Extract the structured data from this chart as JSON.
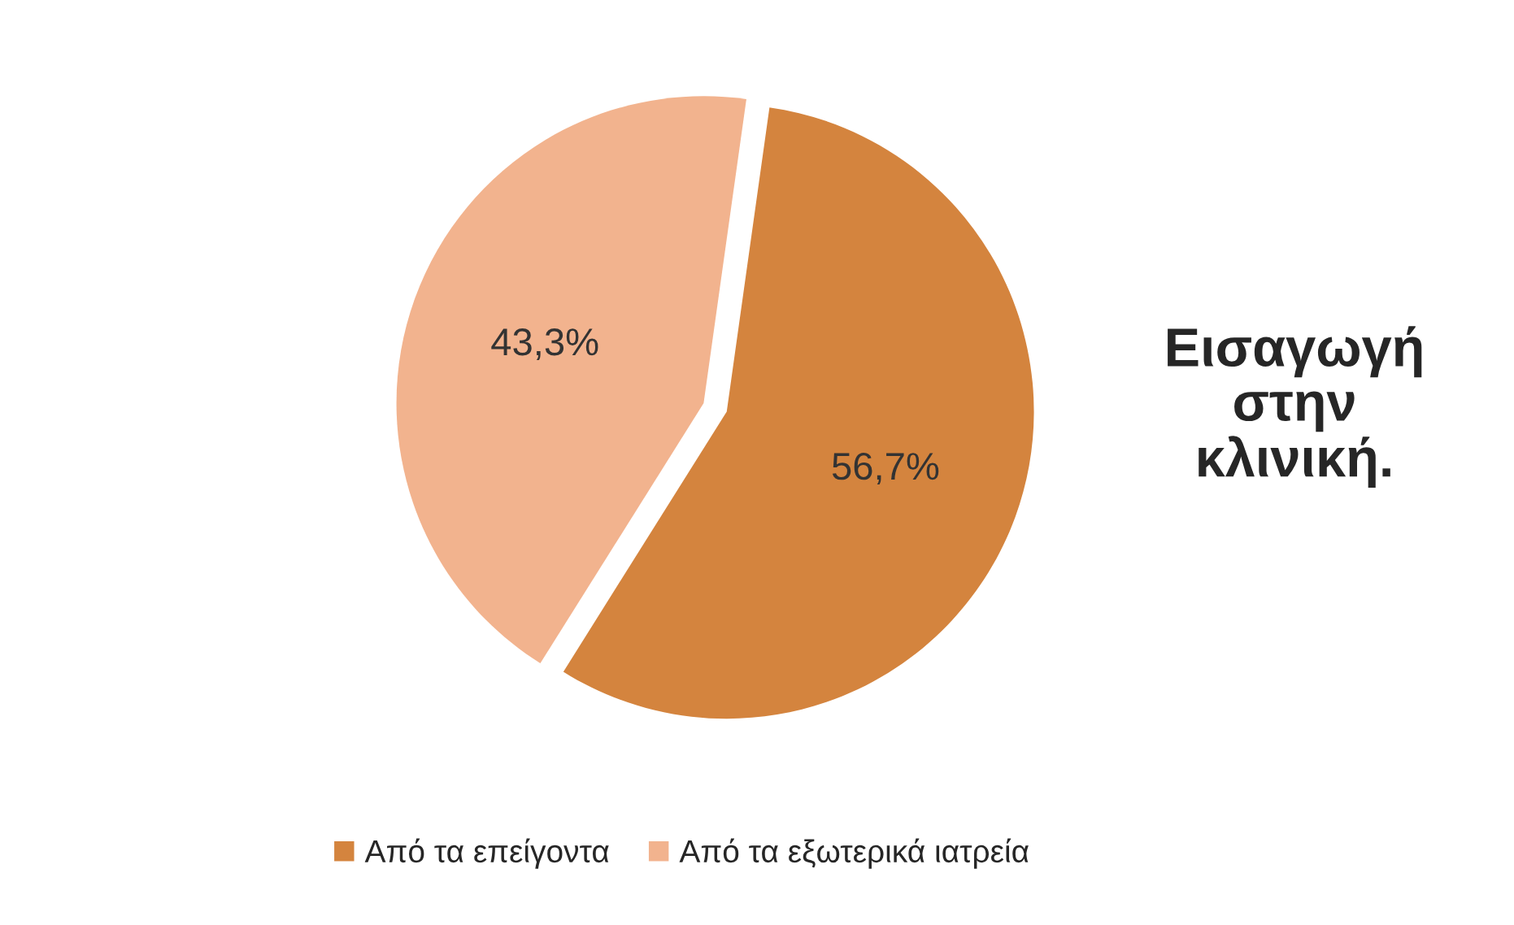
{
  "chart_data": {
    "type": "pie",
    "title": "Εισαγωγή\nστην\nκλινική.",
    "categories": [
      "Από τα επείγοντα",
      "Από τα εξωτερικά ιατρεία"
    ],
    "values": [
      56.7,
      43.3
    ],
    "colors": [
      "#d4843e",
      "#f2b38e"
    ],
    "value_labels": [
      "56,7%",
      "43,3%"
    ],
    "legend": "bottom"
  }
}
